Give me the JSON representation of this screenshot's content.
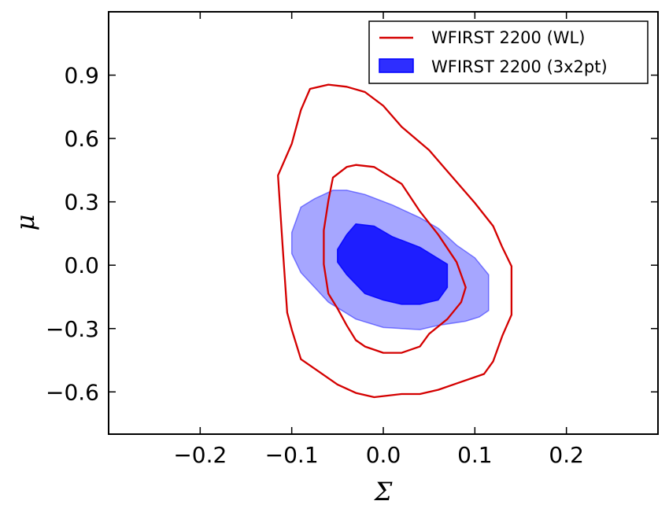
{
  "chart_data": {
    "type": "contour",
    "xlabel": "Σ",
    "ylabel": "μ",
    "xlim": [
      -0.3,
      0.3
    ],
    "ylim": [
      -0.8,
      1.2
    ],
    "xticks": [
      -0.2,
      -0.1,
      0.0,
      0.1,
      0.2
    ],
    "xtick_labels": [
      "−0.2",
      "−0.1",
      "0.0",
      "0.1",
      "0.2"
    ],
    "yticks": [
      -0.6,
      -0.3,
      0.0,
      0.3,
      0.6,
      0.9
    ],
    "ytick_labels": [
      "−0.6",
      "−0.3",
      "0.0",
      "0.3",
      "0.6",
      "0.9"
    ],
    "legend_position": "top-right",
    "series": [
      {
        "name": "WFIRST 2200 (WL)",
        "style": "line",
        "color": "#d40000",
        "contours": [
          {
            "level": "outer",
            "points": [
              [
                -0.06,
                0.855
              ],
              [
                -0.04,
                0.845
              ],
              [
                -0.02,
                0.82
              ],
              [
                0.0,
                0.755
              ],
              [
                0.02,
                0.655
              ],
              [
                0.05,
                0.545
              ],
              [
                0.07,
                0.445
              ],
              [
                0.1,
                0.295
              ],
              [
                0.12,
                0.185
              ],
              [
                0.13,
                0.085
              ],
              [
                0.14,
                -0.005
              ],
              [
                0.14,
                -0.235
              ],
              [
                0.13,
                -0.335
              ],
              [
                0.12,
                -0.455
              ],
              [
                0.11,
                -0.515
              ],
              [
                0.08,
                -0.56
              ],
              [
                0.06,
                -0.59
              ],
              [
                0.04,
                -0.61
              ],
              [
                0.02,
                -0.61
              ],
              [
                -0.01,
                -0.625
              ],
              [
                -0.03,
                -0.605
              ],
              [
                -0.05,
                -0.565
              ],
              [
                -0.07,
                -0.505
              ],
              [
                -0.09,
                -0.445
              ],
              [
                -0.095,
                -0.375
              ],
              [
                -0.1,
                -0.305
              ],
              [
                -0.105,
                -0.225
              ],
              [
                -0.11,
                0.095
              ],
              [
                -0.115,
                0.425
              ],
              [
                -0.1,
                0.575
              ],
              [
                -0.09,
                0.735
              ],
              [
                -0.08,
                0.835
              ],
              [
                -0.06,
                0.855
              ]
            ]
          },
          {
            "level": "inner",
            "points": [
              [
                -0.03,
                0.475
              ],
              [
                -0.01,
                0.465
              ],
              [
                0.02,
                0.385
              ],
              [
                0.04,
                0.255
              ],
              [
                0.06,
                0.145
              ],
              [
                0.08,
                0.015
              ],
              [
                0.09,
                -0.105
              ],
              [
                0.085,
                -0.175
              ],
              [
                0.07,
                -0.255
              ],
              [
                0.05,
                -0.325
              ],
              [
                0.04,
                -0.385
              ],
              [
                0.02,
                -0.415
              ],
              [
                0.0,
                -0.415
              ],
              [
                -0.02,
                -0.385
              ],
              [
                -0.03,
                -0.355
              ],
              [
                -0.04,
                -0.285
              ],
              [
                -0.05,
                -0.205
              ],
              [
                -0.06,
                -0.135
              ],
              [
                -0.065,
                0.005
              ],
              [
                -0.065,
                0.165
              ],
              [
                -0.06,
                0.305
              ],
              [
                -0.055,
                0.415
              ],
              [
                -0.04,
                0.465
              ],
              [
                -0.03,
                0.475
              ]
            ]
          }
        ]
      },
      {
        "name": "WFIRST 2200 (3x2pt)",
        "style": "filled",
        "color": "#0000ff",
        "contours": [
          {
            "level": "outer",
            "points": [
              [
                -0.055,
                0.355
              ],
              [
                -0.04,
                0.355
              ],
              [
                -0.02,
                0.335
              ],
              [
                0.01,
                0.285
              ],
              [
                0.04,
                0.225
              ],
              [
                0.06,
                0.175
              ],
              [
                0.08,
                0.095
              ],
              [
                0.1,
                0.035
              ],
              [
                0.115,
                -0.045
              ],
              [
                0.115,
                -0.215
              ],
              [
                0.105,
                -0.245
              ],
              [
                0.09,
                -0.265
              ],
              [
                0.06,
                -0.285
              ],
              [
                0.04,
                -0.305
              ],
              [
                0.0,
                -0.295
              ],
              [
                -0.03,
                -0.255
              ],
              [
                -0.06,
                -0.175
              ],
              [
                -0.09,
                -0.035
              ],
              [
                -0.1,
                0.055
              ],
              [
                -0.1,
                0.155
              ],
              [
                -0.09,
                0.275
              ],
              [
                -0.075,
                0.315
              ],
              [
                -0.055,
                0.355
              ]
            ]
          },
          {
            "level": "inner",
            "points": [
              [
                -0.03,
                0.195
              ],
              [
                -0.01,
                0.185
              ],
              [
                0.01,
                0.135
              ],
              [
                0.04,
                0.085
              ],
              [
                0.07,
                0.005
              ],
              [
                0.07,
                -0.105
              ],
              [
                0.06,
                -0.165
              ],
              [
                0.04,
                -0.185
              ],
              [
                0.02,
                -0.185
              ],
              [
                0.0,
                -0.165
              ],
              [
                -0.02,
                -0.135
              ],
              [
                -0.04,
                -0.045
              ],
              [
                -0.05,
                0.015
              ],
              [
                -0.05,
                0.075
              ],
              [
                -0.04,
                0.145
              ],
              [
                -0.03,
                0.195
              ]
            ]
          }
        ]
      }
    ]
  }
}
